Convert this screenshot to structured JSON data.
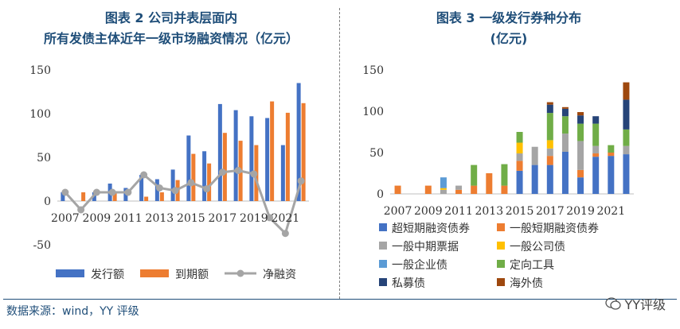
{
  "left": {
    "title_line1": "图表 2 公司并表层面内",
    "title_line2": "所有发债主体近年一级市场融资情况（亿元）"
  },
  "right": {
    "title_line1": "图表 3 一级发行券种分布",
    "title_line2": "(亿元)"
  },
  "footer": {
    "source": "数据来源：wind，YY 评级",
    "watermark": "YY评级",
    "watermark_icon": "wechat-icon"
  },
  "colors": {
    "blue": "#4472c4",
    "orange": "#ed7d31",
    "gray": "#a5a5a5",
    "yellow": "#ffc000",
    "lightblue": "#5b9bd5",
    "green": "#70ad47",
    "navy": "#264478",
    "brown": "#9e480e",
    "title": "#1f4e79"
  },
  "chart_data": [
    {
      "type": "bar",
      "categories": [
        "2007",
        "2008",
        "2009",
        "2010",
        "2011",
        "2012",
        "2013",
        "2014",
        "2015",
        "2016",
        "2017",
        "2018",
        "2019",
        "2020",
        "2021",
        "2022"
      ],
      "tick_labels": [
        "2007",
        "",
        "2009",
        "",
        "2011",
        "",
        "2013",
        "",
        "2015",
        "",
        "2017",
        "",
        "2019",
        "",
        "2021",
        ""
      ],
      "ylim": [
        -50,
        150
      ],
      "yticks": [
        -50,
        0,
        50,
        100,
        150
      ],
      "legend_position": "bottom",
      "grid": false,
      "series": [
        {
          "name": "发行额",
          "type": "bar",
          "color": "#4472c4",
          "values": [
            10,
            0,
            10,
            20,
            15,
            30,
            25,
            36,
            75,
            57,
            111,
            104,
            97,
            95,
            64,
            135
          ]
        },
        {
          "name": "到期额",
          "type": "bar",
          "color": "#ed7d31",
          "values": [
            0,
            10,
            0,
            10,
            0,
            5,
            10,
            24,
            54,
            43,
            78,
            69,
            64,
            114,
            101,
            112
          ]
        },
        {
          "name": "净融资",
          "type": "line",
          "color": "#a5a5a5",
          "values": [
            10,
            -10,
            10,
            10,
            10,
            30,
            15,
            12,
            21,
            14,
            33,
            35,
            31,
            -19,
            -37,
            23
          ]
        }
      ]
    },
    {
      "type": "bar",
      "stacked": true,
      "categories": [
        "2007",
        "2008",
        "2009",
        "2010",
        "2011",
        "2012",
        "2013",
        "2014",
        "2015",
        "2016",
        "2017",
        "2018",
        "2019",
        "2020",
        "2021",
        "2022"
      ],
      "tick_labels": [
        "2007",
        "",
        "2009",
        "",
        "2011",
        "",
        "2013",
        "",
        "2015",
        "",
        "2017",
        "",
        "2019",
        "",
        "2021",
        ""
      ],
      "ylim": [
        0,
        150
      ],
      "yticks": [
        0,
        50,
        100,
        150
      ],
      "legend_position": "bottom",
      "grid": false,
      "series": [
        {
          "name": "超短期融资债券",
          "color": "#4472c4",
          "values": [
            0,
            0,
            0,
            0,
            0,
            0,
            0,
            0,
            28,
            35,
            35,
            51,
            20,
            45,
            46,
            48
          ]
        },
        {
          "name": "一般短期融资债券",
          "color": "#ed7d31",
          "values": [
            10,
            0,
            10,
            0,
            5,
            10,
            25,
            10,
            12,
            0,
            11,
            0,
            9,
            4,
            4,
            0
          ]
        },
        {
          "name": "一般中期票据",
          "color": "#a5a5a5",
          "values": [
            0,
            0,
            0,
            5,
            5,
            0,
            0,
            0,
            9,
            22,
            9,
            22,
            35,
            9,
            0,
            10
          ]
        },
        {
          "name": "一般公司债",
          "color": "#ffc000",
          "values": [
            0,
            0,
            0,
            2,
            0,
            0,
            0,
            0,
            13,
            0,
            10,
            0,
            0,
            0,
            0,
            0
          ]
        },
        {
          "name": "一般企业债",
          "color": "#5b9bd5",
          "values": [
            0,
            0,
            0,
            13,
            0,
            0,
            0,
            0,
            0,
            0,
            0,
            0,
            0,
            0,
            0,
            0
          ]
        },
        {
          "name": "定向工具",
          "color": "#70ad47",
          "values": [
            0,
            0,
            0,
            0,
            0,
            25,
            0,
            26,
            13,
            0,
            33,
            21,
            21,
            27,
            9,
            20
          ]
        },
        {
          "name": "私募债",
          "color": "#264478",
          "values": [
            0,
            0,
            0,
            0,
            0,
            0,
            0,
            0,
            0,
            0,
            10,
            9,
            10,
            9,
            0,
            36
          ]
        },
        {
          "name": "海外债",
          "color": "#9e480e",
          "values": [
            0,
            0,
            0,
            0,
            0,
            0,
            0,
            0,
            0,
            0,
            3,
            2,
            4,
            0,
            0,
            21
          ]
        }
      ]
    }
  ]
}
